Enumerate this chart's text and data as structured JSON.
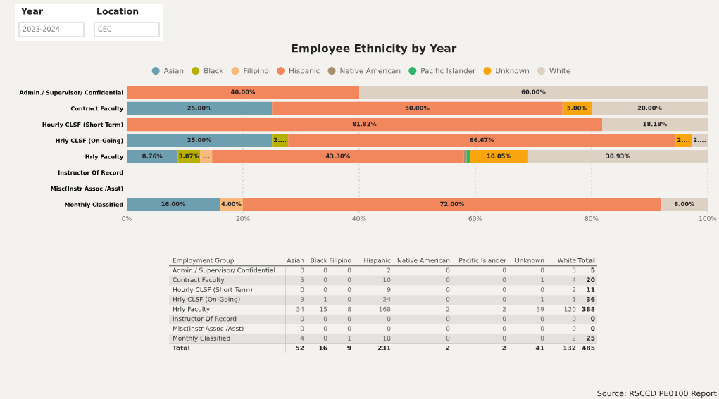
{
  "chart_data": [
    {
      "type": "bar",
      "orientation": "horizontal",
      "stacked": true,
      "title": "Employee Ethnicity by Year",
      "categories": [
        "Admin./ Supervisor/ Confidential",
        "Contract Faculty",
        "Hourly CLSF (Short Term)",
        "Hrly CLSF (On-Going)",
        "Hrly Faculty",
        "Instructor Of Record",
        "Misc(Instr Assoc /Asst)",
        "Monthly Classified"
      ],
      "series": [
        {
          "name": "Asian",
          "color": "#6e9fb0",
          "values": [
            0,
            25,
            0,
            25,
            8.76,
            0,
            0,
            16
          ],
          "value_labels": [
            null,
            "25.00%",
            null,
            "25.00%",
            "8.76%",
            null,
            null,
            "16.00%"
          ]
        },
        {
          "name": "Black",
          "color": "#b8b000",
          "values": [
            0,
            0,
            0,
            2.78,
            3.87,
            0,
            0,
            0
          ],
          "value_labels": [
            null,
            null,
            null,
            "2....",
            "3.87%",
            null,
            null,
            null
          ]
        },
        {
          "name": "Filipino",
          "color": "#f9b87c",
          "values": [
            0,
            0,
            0,
            0,
            2.06,
            0,
            0,
            4
          ],
          "value_labels": [
            null,
            null,
            null,
            null,
            "...",
            null,
            null,
            "4.00%"
          ]
        },
        {
          "name": "Hispanic",
          "color": "#f2865d",
          "values": [
            40,
            50,
            81.82,
            66.67,
            43.3,
            0,
            0,
            72
          ],
          "value_labels": [
            "40.00%",
            "50.00%",
            "81.82%",
            "66.67%",
            "43.30%",
            null,
            null,
            "72.00%"
          ]
        },
        {
          "name": "Native American",
          "color": "#a8916f",
          "values": [
            0,
            0,
            0,
            0,
            0.52,
            0,
            0,
            0
          ],
          "value_labels": [
            null,
            null,
            null,
            null,
            null,
            null,
            null,
            null
          ]
        },
        {
          "name": "Pacific Islander",
          "color": "#2fb56a",
          "values": [
            0,
            0,
            0,
            0,
            0.52,
            0,
            0,
            0
          ],
          "value_labels": [
            null,
            null,
            null,
            null,
            null,
            null,
            null,
            null
          ]
        },
        {
          "name": "Unknown",
          "color": "#f9a50e",
          "values": [
            0,
            5,
            0,
            2.78,
            10.05,
            0,
            0,
            0
          ],
          "value_labels": [
            null,
            "5.00%",
            null,
            "2....",
            "10.05%",
            null,
            null,
            null
          ]
        },
        {
          "name": "White",
          "color": "#ddd1c3",
          "values": [
            60,
            20,
            18.18,
            2.78,
            30.93,
            0,
            0,
            8
          ],
          "value_labels": [
            "60.00%",
            "20.00%",
            "18.18%",
            "2....",
            "30.93%",
            null,
            null,
            "8.00%"
          ]
        }
      ],
      "xlim": [
        0,
        100
      ],
      "xticks": [
        {
          "value": 0,
          "label": "0%"
        },
        {
          "value": 20,
          "label": "20%"
        },
        {
          "value": 40,
          "label": "40%"
        },
        {
          "value": 60,
          "label": "60%"
        },
        {
          "value": 80,
          "label": "80%"
        },
        {
          "value": 100,
          "label": "100%"
        }
      ],
      "grid": "x",
      "legend": "top",
      "annotations": [
        "Year",
        "2023-2024",
        "Location",
        "CEC",
        "Source: RSCCD PE0100 Report"
      ]
    },
    {
      "type": "heatmap",
      "ylabel": "Employment Group",
      "data_labels": true,
      "categories": [
        "Asian",
        "Black",
        "Filipino",
        "Hispanic",
        "Native American",
        "Pacific Islander",
        "Unknown",
        "White",
        "Total"
      ],
      "y_categories": [
        "Admin./ Supervisor/ Confidential",
        "Contract Faculty",
        "Hourly CLSF (Short Term)",
        "Hrly CLSF (On-Going)",
        "Hrly Faculty",
        "Instructor Of Record",
        "Misc(Instr Assoc /Asst)",
        "Monthly Classified",
        "Total"
      ],
      "cells": [
        [
          0,
          0,
          0,
          2,
          0,
          0,
          0,
          3,
          5
        ],
        [
          5,
          0,
          0,
          10,
          0,
          0,
          1,
          4,
          20
        ],
        [
          0,
          0,
          0,
          9,
          0,
          0,
          0,
          2,
          11
        ],
        [
          9,
          1,
          0,
          24,
          0,
          0,
          1,
          1,
          36
        ],
        [
          34,
          15,
          8,
          168,
          2,
          2,
          39,
          120,
          388
        ],
        [
          0,
          0,
          0,
          0,
          0,
          0,
          0,
          0,
          0
        ],
        [
          0,
          0,
          0,
          0,
          0,
          0,
          0,
          0,
          0
        ],
        [
          4,
          0,
          1,
          18,
          0,
          0,
          0,
          2,
          25
        ],
        [
          52,
          16,
          9,
          231,
          2,
          2,
          41,
          132,
          485
        ]
      ]
    }
  ]
}
